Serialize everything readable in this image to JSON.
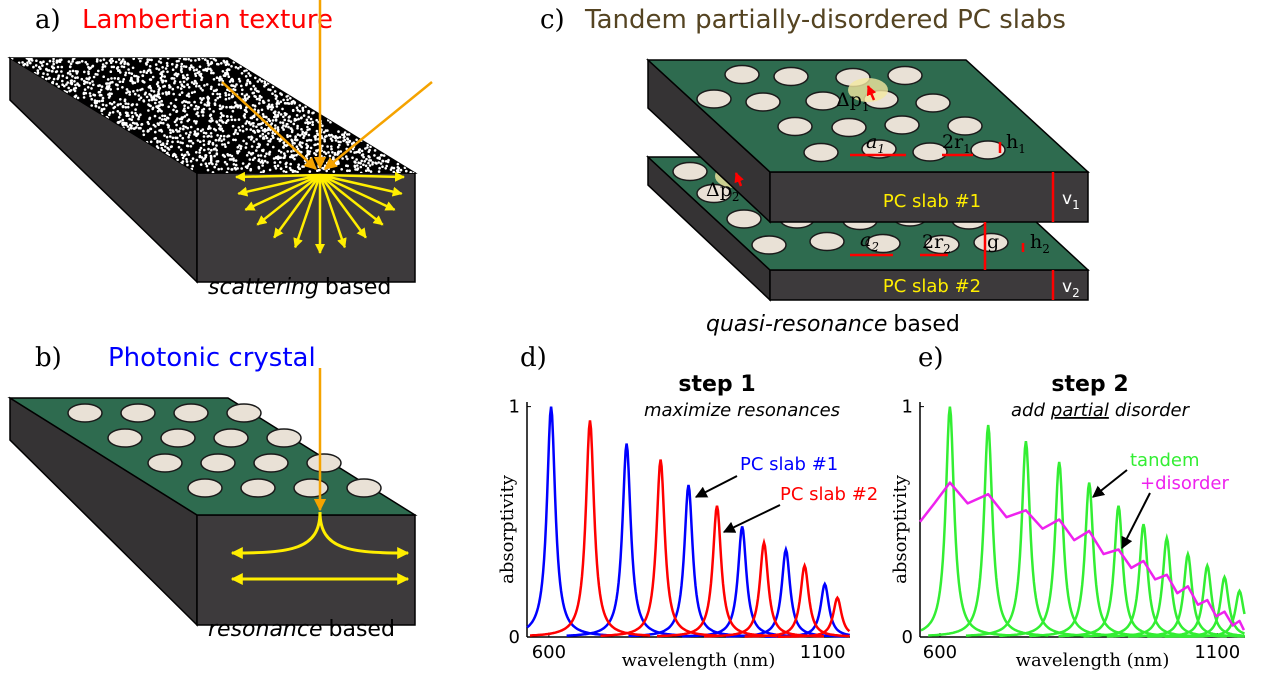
{
  "panels": [
    {
      "label": "a)",
      "title": "Lambertian texture",
      "caption": {
        "emphasis": "scattering",
        "rest": "based"
      }
    },
    {
      "label": "b)",
      "title": "Photonic crystal",
      "caption": {
        "emphasis": "resonance",
        "rest": "based"
      }
    },
    {
      "label": "c)",
      "title": "Tandem partially-disordered PC slabs",
      "caption": {
        "emphasis": "quasi-resonance",
        "rest": "based"
      },
      "slabs": [
        "PC slab #1",
        "PC slab #2"
      ],
      "labels": [
        {
          "text": "Δp",
          "sub": "1"
        },
        {
          "text": "a",
          "sub": "1"
        },
        {
          "text": "2r",
          "sub": "1"
        },
        {
          "text": "h",
          "sub": "1"
        },
        {
          "text": "v",
          "sub": "1"
        },
        {
          "text": "Δp",
          "sub": "2"
        },
        {
          "text": "a",
          "sub": "2"
        },
        {
          "text": "2r",
          "sub": "2"
        },
        {
          "text": "g"
        },
        {
          "text": "h",
          "sub": "2"
        },
        {
          "text": "v",
          "sub": "2"
        }
      ]
    }
  ],
  "chart_data": [
    {
      "panel": "d)",
      "type": "line",
      "title": "step 1",
      "subtitle": [
        {
          "text": "maximize resonances"
        }
      ],
      "xlabel": "wavelength (nm)",
      "ylabel": "absorptivity",
      "xlim": [
        560,
        1150
      ],
      "ylim": [
        0,
        1.02
      ],
      "xticks": [
        600,
        1100
      ],
      "yticks": [
        0,
        1
      ],
      "series": [
        {
          "name": "PC slab #1",
          "color": "#0000ff",
          "style": "peaks",
          "x": [
            604,
            742,
            855,
            953,
            1033,
            1104
          ],
          "values": [
            1.0,
            0.84,
            0.66,
            0.48,
            0.38,
            0.23
          ]
        },
        {
          "name": "PC slab #2",
          "color": "#ff0000",
          "style": "peaks",
          "x": [
            675,
            804,
            907,
            993,
            1067,
            1127
          ],
          "values": [
            0.94,
            0.77,
            0.57,
            0.41,
            0.31,
            0.17
          ]
        }
      ]
    },
    {
      "panel": "e)",
      "type": "line",
      "title": "step 2",
      "subtitle": [
        {
          "text": "add"
        },
        {
          "text": "partial",
          "underline": true
        },
        {
          "text": "disorder"
        }
      ],
      "xlabel": "wavelength (nm)",
      "ylabel": "absorptivity",
      "xlim": [
        564,
        1150
      ],
      "ylim": [
        0,
        1.02
      ],
      "xticks": [
        600,
        1100
      ],
      "yticks": [
        0,
        1
      ],
      "series": [
        {
          "name": "tandem",
          "color": "#33ee33",
          "style": "peaks",
          "x": [
            618,
            687,
            755,
            815,
            869,
            922,
            967,
            1009,
            1047,
            1082,
            1113,
            1140
          ],
          "values": [
            1.0,
            0.92,
            0.85,
            0.76,
            0.67,
            0.57,
            0.49,
            0.43,
            0.36,
            0.31,
            0.26,
            0.2
          ]
        },
        {
          "name": "+disorder",
          "color": "#ee22ee",
          "style": "line",
          "x": [
            564,
            590,
            618,
            650,
            687,
            720,
            755,
            785,
            815,
            842,
            869,
            895,
            922,
            945,
            967,
            988,
            1009,
            1028,
            1047,
            1065,
            1082,
            1098,
            1113,
            1128,
            1140,
            1148
          ],
          "values": [
            0.5,
            0.58,
            0.67,
            0.58,
            0.62,
            0.52,
            0.55,
            0.47,
            0.51,
            0.42,
            0.46,
            0.36,
            0.38,
            0.3,
            0.33,
            0.25,
            0.27,
            0.19,
            0.22,
            0.14,
            0.16,
            0.09,
            0.11,
            0.05,
            0.07,
            0.03
          ]
        }
      ]
    }
  ]
}
